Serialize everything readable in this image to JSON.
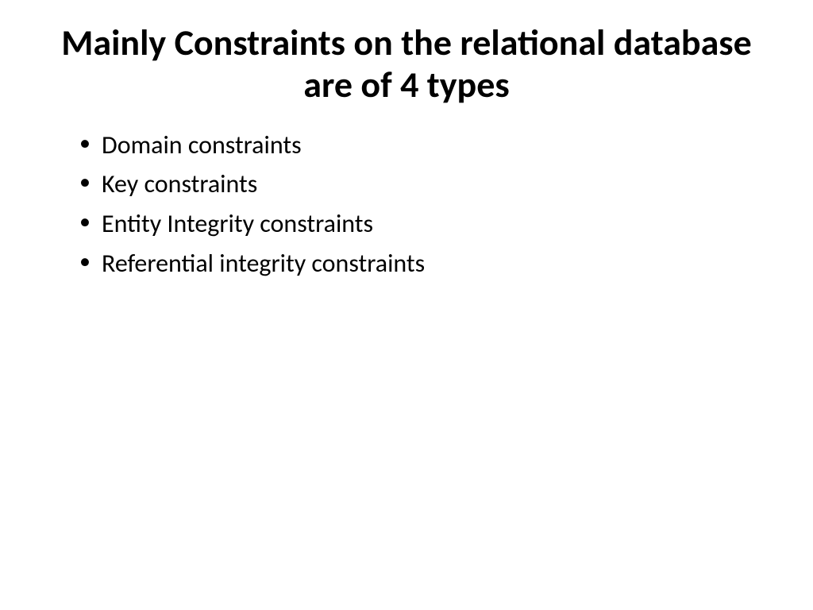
{
  "slide": {
    "title": "Mainly Constraints on the relational database are of 4 types",
    "bullets": [
      "Domain constraints",
      "Key constraints",
      "Entity Integrity constraints",
      "Referential integrity constraints"
    ],
    "title_fontsize": 46,
    "bullet_fontsize": 32,
    "title_color": "#000000",
    "bullet_color": "#000000",
    "background_color": "#ffffff"
  }
}
